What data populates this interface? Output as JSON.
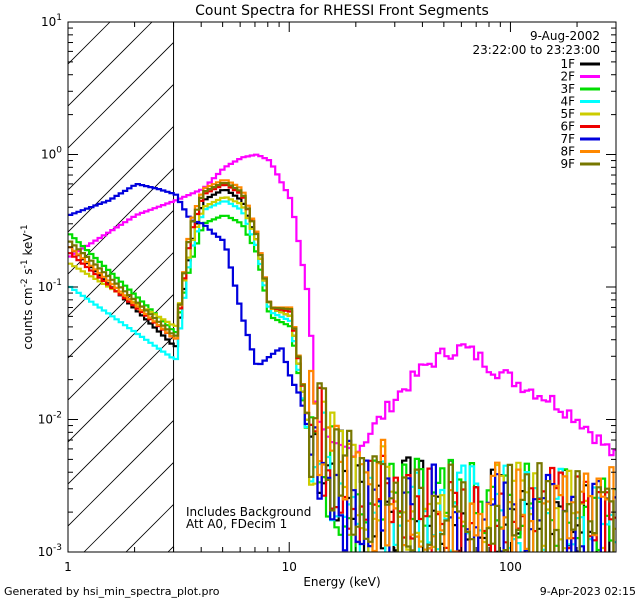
{
  "chart_data": {
    "type": "line",
    "title": "Count Spectra for RHESSI Front Segments",
    "xlabel": "Energy (keV)",
    "ylabel_main": "counts cm",
    "ylabel_sup1": "-2",
    "ylabel_mid": " s",
    "ylabel_sup2": "-1",
    "ylabel_end": " keV",
    "ylabel_sup3": "-1",
    "xscale": "log",
    "yscale": "log",
    "xlim": [
      1,
      300
    ],
    "ylim": [
      0.001,
      10
    ],
    "xticks": [
      {
        "label": "1",
        "value": 1
      },
      {
        "label": "10",
        "value": 10
      },
      {
        "label": "100",
        "value": 100
      }
    ],
    "yticks": [
      {
        "base": "10",
        "exp": "-3",
        "value": 0.001
      },
      {
        "base": "10",
        "exp": "-2",
        "value": 0.01
      },
      {
        "base": "10",
        "exp": "-1",
        "value": 0.1
      },
      {
        "base": "10",
        "exp": "0",
        "value": 1
      },
      {
        "base": "10",
        "exp": "1",
        "value": 10
      }
    ],
    "shaded_region": {
      "x0": 1,
      "x1": 3,
      "pattern": "diagonal-hatch"
    },
    "legend": {
      "placement": "top-right",
      "date": "9-Aug-2002",
      "time_range": "23:22:00 to 23:23:00"
    },
    "annotations": [
      "Includes Background",
      "Att A0, FDecim 1"
    ],
    "footer_left": "Generated by hsi_min_spectra_plot.pro",
    "footer_right": "9-Apr-2023 02:15",
    "series": [
      {
        "name": "1F",
        "color": "#000000",
        "x": [
          1,
          3,
          3.5,
          4,
          5,
          6,
          7,
          8,
          10,
          12,
          20,
          30,
          50,
          100,
          200,
          300
        ],
        "values": [
          0.2,
          0.035,
          0.2,
          0.45,
          0.55,
          0.45,
          0.22,
          0.07,
          0.06,
          0.008,
          0.0025,
          0.002,
          0.0018,
          0.0017,
          0.0016,
          0.0015
        ]
      },
      {
        "name": "2F",
        "color": "#ff00ff",
        "x": [
          1,
          2,
          3,
          4,
          5,
          6,
          7,
          8,
          10,
          12,
          13,
          15,
          20,
          30,
          40,
          50,
          60,
          70,
          80,
          100,
          150,
          200,
          300
        ],
        "values": [
          0.17,
          0.35,
          0.45,
          0.55,
          0.8,
          0.95,
          1.0,
          0.9,
          0.45,
          0.08,
          0.01,
          0.006,
          0.006,
          0.015,
          0.025,
          0.032,
          0.035,
          0.03,
          0.025,
          0.02,
          0.014,
          0.01,
          0.005
        ]
      },
      {
        "name": "3F",
        "color": "#00dd00",
        "x": [
          1,
          3,
          3.5,
          4,
          5,
          6,
          7,
          8,
          10,
          12,
          20,
          30,
          50,
          100,
          200,
          300
        ],
        "values": [
          0.25,
          0.045,
          0.15,
          0.3,
          0.35,
          0.3,
          0.18,
          0.06,
          0.05,
          0.007,
          0.0022,
          0.002,
          0.0018,
          0.0017,
          0.0016,
          0.0015
        ]
      },
      {
        "name": "4F",
        "color": "#00ffff",
        "x": [
          1,
          3,
          3.5,
          4,
          5,
          6,
          7,
          8,
          10,
          12,
          20,
          30,
          50,
          100,
          200,
          300
        ],
        "values": [
          0.1,
          0.028,
          0.18,
          0.38,
          0.45,
          0.38,
          0.2,
          0.065,
          0.055,
          0.007,
          0.0023,
          0.002,
          0.0018,
          0.0017,
          0.0016,
          0.0015
        ]
      },
      {
        "name": "5F",
        "color": "#cccc00",
        "x": [
          1,
          3,
          3.5,
          4,
          5,
          6,
          7,
          8,
          10,
          12,
          20,
          30,
          50,
          100,
          200,
          300
        ],
        "values": [
          0.15,
          0.05,
          0.2,
          0.4,
          0.48,
          0.42,
          0.22,
          0.07,
          0.06,
          0.008,
          0.0026,
          0.0022,
          0.0019,
          0.0017,
          0.0016,
          0.0015
        ]
      },
      {
        "name": "6F",
        "color": "#ee0000",
        "x": [
          1,
          3,
          3.5,
          4,
          5,
          6,
          7,
          8,
          10,
          12,
          20,
          30,
          50,
          100,
          200,
          300
        ],
        "values": [
          0.18,
          0.04,
          0.25,
          0.5,
          0.6,
          0.5,
          0.25,
          0.07,
          0.065,
          0.009,
          0.0027,
          0.0022,
          0.0019,
          0.0017,
          0.0016,
          0.0015
        ]
      },
      {
        "name": "7F",
        "color": "#0000dd",
        "x": [
          1,
          1.5,
          2,
          2.5,
          3,
          3.5,
          4,
          4.5,
          5,
          6,
          7,
          8,
          9,
          10,
          11,
          12,
          20,
          30,
          50,
          100,
          200,
          300
        ],
        "values": [
          0.35,
          0.45,
          0.6,
          0.55,
          0.5,
          0.32,
          0.3,
          0.25,
          0.22,
          0.06,
          0.025,
          0.03,
          0.035,
          0.02,
          0.015,
          0.008,
          0.002,
          0.0017,
          0.0016,
          0.0015,
          0.0014,
          0.0013
        ]
      },
      {
        "name": "8F",
        "color": "#ff8800",
        "x": [
          1,
          3,
          3.5,
          4,
          5,
          6,
          7,
          8,
          10,
          12,
          20,
          30,
          50,
          100,
          200,
          300
        ],
        "values": [
          0.2,
          0.04,
          0.3,
          0.55,
          0.65,
          0.55,
          0.25,
          0.07,
          0.07,
          0.009,
          0.0028,
          0.0024,
          0.002,
          0.0018,
          0.0017,
          0.0016
        ]
      },
      {
        "name": "9F",
        "color": "#777700",
        "x": [
          1,
          3,
          3.5,
          4,
          5,
          6,
          7,
          8,
          10,
          12,
          20,
          30,
          50,
          100,
          200,
          300
        ],
        "values": [
          0.22,
          0.042,
          0.28,
          0.52,
          0.62,
          0.52,
          0.24,
          0.07,
          0.068,
          0.009,
          0.0028,
          0.0023,
          0.002,
          0.0018,
          0.0017,
          0.0016
        ]
      }
    ]
  }
}
